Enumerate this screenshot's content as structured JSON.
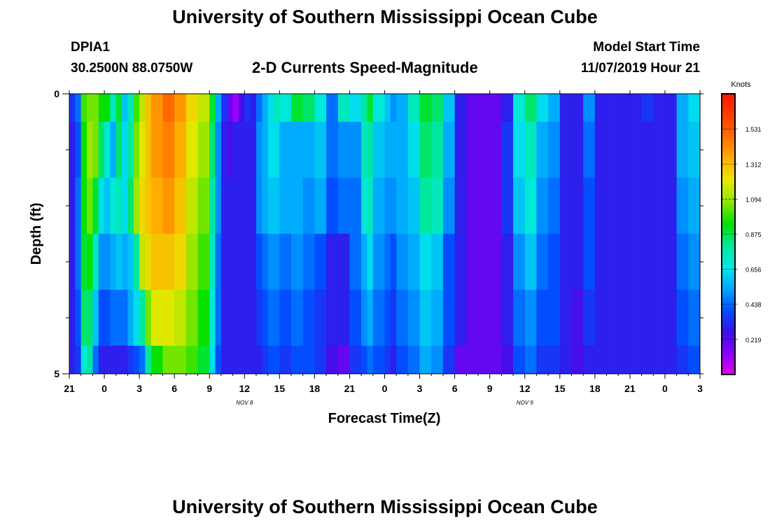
{
  "page": {
    "title_top": "University of Southern Mississippi Ocean Cube",
    "title_bottom": "University of Southern Mississippi Ocean Cube",
    "station_id": "DPIA1",
    "station_coords": "30.2500N 88.0750W",
    "plot_title": "2-D Currents Speed-Magnitude",
    "model_start_label": "Model Start Time",
    "model_start_value": "11/07/2019 Hour 21"
  },
  "colors": {
    "scale": [
      "#e000e8",
      "#8a00ff",
      "#3a10e6",
      "#0050ff",
      "#00a8ff",
      "#00e8e8",
      "#00e89a",
      "#00e000",
      "#8ee600",
      "#e8e800",
      "#ffb000",
      "#ff7000",
      "#ff3e00",
      "#ff1800"
    ]
  },
  "chart_data": {
    "type": "heatmap",
    "title": "2-D Currents Speed-Magnitude",
    "xlabel": "Forecast Time(Z)",
    "ylabel": "Depth (ft)",
    "x_tick_labels": [
      "21",
      "0",
      "3",
      "6",
      "9",
      "12",
      "15",
      "18",
      "21",
      "0",
      "3",
      "6",
      "9",
      "12",
      "15",
      "18",
      "21",
      "0",
      "3"
    ],
    "x_date_labels": [
      {
        "label": "NOV 8",
        "hour": 12
      },
      {
        "label": "NOV 9",
        "hour": 36
      }
    ],
    "x_range_hours": [
      -3,
      51
    ],
    "y_tick_labels": [
      "0",
      "5"
    ],
    "ylim": [
      0,
      5
    ],
    "depth_layers_ft": [
      0,
      0.5,
      1.5,
      2.5,
      3.5,
      4.5
    ],
    "colorbar_label": "Knots",
    "colorbar_ticks": [
      1.531,
      1.312,
      1.094,
      0.875,
      0.656,
      0.438,
      0.219
    ],
    "colorbar_range": [
      0.0,
      1.75
    ],
    "keyframes_hour": [
      -3,
      -2.5,
      -2,
      -1.5,
      -1,
      -0.5,
      0,
      0.5,
      1,
      1.5,
      2,
      2.5,
      3,
      3.5,
      4,
      5,
      6,
      7,
      8,
      9,
      9.5,
      10,
      10.5,
      11,
      11.5,
      12,
      12.5,
      13,
      13.5,
      14,
      14.5,
      15,
      16,
      17,
      18,
      19,
      20,
      21,
      22,
      22.5,
      23,
      24,
      24.5,
      25,
      26,
      27,
      28,
      29,
      30,
      31,
      32,
      33,
      34,
      35,
      36,
      37,
      38,
      39,
      40,
      41,
      42,
      43,
      44,
      45,
      46,
      47,
      48,
      49,
      50,
      51
    ],
    "keyframes_speed_knots": [
      [
        0.35,
        0.45,
        1.0,
        1.05,
        1.05,
        0.95,
        0.95,
        0.75,
        0.9,
        0.6,
        0.75,
        1.0,
        1.15,
        1.3,
        1.4,
        1.5,
        1.4,
        1.25,
        1.15,
        0.9,
        0.55,
        0.35,
        0.2,
        0.1,
        0.25,
        0.35,
        0.3,
        0.45,
        0.55,
        0.65,
        0.75,
        0.7,
        0.9,
        0.85,
        0.7,
        0.45,
        0.75,
        0.65,
        0.8,
        0.9,
        0.7,
        0.6,
        0.5,
        0.55,
        0.75,
        0.9,
        0.85,
        0.6,
        0.3,
        0.2,
        0.2,
        0.2,
        0.3,
        0.7,
        0.85,
        0.65,
        0.55,
        0.3,
        0.3,
        0.5,
        0.3,
        0.3,
        0.3,
        0.3,
        0.35,
        0.3,
        0.3,
        0.55,
        0.65,
        0.5
      ],
      [
        0.3,
        0.4,
        0.95,
        1.1,
        1.05,
        0.85,
        0.7,
        0.55,
        0.85,
        0.65,
        0.8,
        1.05,
        1.2,
        1.3,
        1.4,
        1.45,
        1.35,
        1.2,
        1.1,
        0.85,
        0.5,
        0.3,
        0.25,
        0.3,
        0.3,
        0.3,
        0.3,
        0.5,
        0.55,
        0.65,
        0.65,
        0.55,
        0.55,
        0.55,
        0.6,
        0.45,
        0.5,
        0.5,
        0.75,
        0.8,
        0.6,
        0.55,
        0.55,
        0.55,
        0.65,
        0.85,
        0.8,
        0.55,
        0.3,
        0.2,
        0.2,
        0.2,
        0.35,
        0.65,
        0.75,
        0.55,
        0.5,
        0.3,
        0.3,
        0.45,
        0.3,
        0.3,
        0.3,
        0.3,
        0.3,
        0.3,
        0.3,
        0.55,
        0.6,
        0.45
      ],
      [
        0.3,
        0.45,
        0.95,
        1.05,
        0.9,
        0.65,
        0.6,
        0.7,
        0.75,
        0.65,
        0.85,
        1.1,
        1.25,
        1.3,
        1.35,
        1.4,
        1.3,
        1.15,
        1.05,
        0.8,
        0.5,
        0.3,
        0.3,
        0.3,
        0.3,
        0.3,
        0.3,
        0.5,
        0.55,
        0.6,
        0.6,
        0.55,
        0.55,
        0.5,
        0.55,
        0.4,
        0.45,
        0.45,
        0.7,
        0.75,
        0.55,
        0.5,
        0.5,
        0.55,
        0.6,
        0.8,
        0.75,
        0.5,
        0.3,
        0.2,
        0.2,
        0.2,
        0.35,
        0.6,
        0.7,
        0.5,
        0.45,
        0.3,
        0.3,
        0.4,
        0.3,
        0.3,
        0.3,
        0.3,
        0.3,
        0.3,
        0.3,
        0.5,
        0.55,
        0.4
      ],
      [
        0.3,
        0.45,
        0.9,
        0.95,
        0.75,
        0.5,
        0.5,
        0.55,
        0.6,
        0.55,
        0.6,
        0.8,
        1.15,
        1.25,
        1.3,
        1.3,
        1.25,
        1.1,
        1.0,
        0.75,
        0.45,
        0.3,
        0.3,
        0.3,
        0.3,
        0.3,
        0.3,
        0.4,
        0.45,
        0.5,
        0.5,
        0.45,
        0.5,
        0.45,
        0.4,
        0.3,
        0.3,
        0.45,
        0.55,
        0.65,
        0.5,
        0.45,
        0.4,
        0.5,
        0.55,
        0.65,
        0.6,
        0.4,
        0.3,
        0.2,
        0.2,
        0.2,
        0.3,
        0.5,
        0.6,
        0.45,
        0.4,
        0.3,
        0.3,
        0.4,
        0.3,
        0.3,
        0.3,
        0.3,
        0.3,
        0.3,
        0.3,
        0.45,
        0.5,
        0.35
      ],
      [
        0.3,
        0.4,
        0.85,
        0.85,
        0.6,
        0.4,
        0.4,
        0.45,
        0.45,
        0.45,
        0.55,
        0.65,
        0.8,
        1.05,
        1.2,
        1.2,
        1.15,
        1.05,
        0.95,
        0.7,
        0.45,
        0.3,
        0.3,
        0.3,
        0.3,
        0.3,
        0.3,
        0.35,
        0.4,
        0.45,
        0.45,
        0.4,
        0.45,
        0.4,
        0.35,
        0.3,
        0.3,
        0.4,
        0.5,
        0.55,
        0.45,
        0.4,
        0.35,
        0.45,
        0.5,
        0.6,
        0.55,
        0.4,
        0.3,
        0.2,
        0.2,
        0.2,
        0.3,
        0.45,
        0.5,
        0.4,
        0.4,
        0.3,
        0.25,
        0.35,
        0.3,
        0.3,
        0.3,
        0.3,
        0.3,
        0.3,
        0.3,
        0.4,
        0.45,
        0.3
      ],
      [
        0.3,
        0.35,
        0.7,
        0.8,
        0.45,
        0.3,
        0.3,
        0.3,
        0.3,
        0.3,
        0.35,
        0.4,
        0.45,
        0.8,
        0.95,
        1.05,
        1.05,
        1.0,
        0.9,
        0.65,
        0.4,
        0.3,
        0.3,
        0.3,
        0.3,
        0.3,
        0.3,
        0.3,
        0.35,
        0.4,
        0.4,
        0.35,
        0.4,
        0.4,
        0.35,
        0.25,
        0.2,
        0.35,
        0.4,
        0.45,
        0.4,
        0.35,
        0.3,
        0.4,
        0.45,
        0.55,
        0.5,
        0.35,
        0.2,
        0.2,
        0.2,
        0.2,
        0.25,
        0.4,
        0.45,
        0.35,
        0.35,
        0.3,
        0.25,
        0.3,
        0.3,
        0.3,
        0.3,
        0.3,
        0.3,
        0.3,
        0.3,
        0.35,
        0.4,
        0.3
      ]
    ]
  }
}
